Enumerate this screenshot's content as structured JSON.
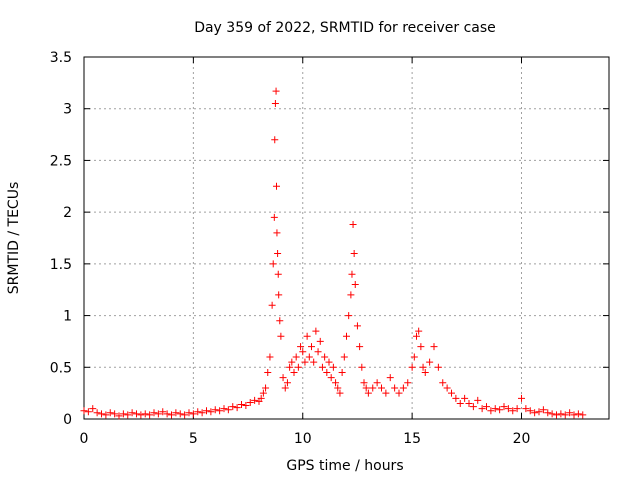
{
  "chart_data": {
    "type": "scatter",
    "title": "Day 359 of 2022, SRMTID for receiver case",
    "xlabel": "GPS time / hours",
    "ylabel": "SRMTID / TECUs",
    "xlim": [
      0,
      24
    ],
    "ylim": [
      0,
      3.5
    ],
    "xticks": [
      0,
      5,
      10,
      15,
      20
    ],
    "yticks": [
      0,
      0.5,
      1,
      1.5,
      2,
      2.5,
      3,
      3.5
    ],
    "xtick_labels": [
      "0",
      "5",
      "10",
      "15",
      "20"
    ],
    "ytick_labels": [
      "0",
      "0.5",
      "1",
      "1.5",
      "2",
      "2.5",
      "3",
      "3.5"
    ],
    "grid": true,
    "marker": "+",
    "color": "#ff0000",
    "series": [
      {
        "name": "SRMTID",
        "x": [
          0.0,
          0.2,
          0.4,
          0.6,
          0.8,
          1.0,
          1.2,
          1.4,
          1.6,
          1.8,
          2.0,
          2.2,
          2.4,
          2.6,
          2.8,
          3.0,
          3.2,
          3.4,
          3.6,
          3.8,
          4.0,
          4.2,
          4.4,
          4.6,
          4.8,
          5.0,
          5.2,
          5.4,
          5.6,
          5.8,
          6.0,
          6.2,
          6.4,
          6.6,
          6.8,
          7.0,
          7.2,
          7.4,
          7.6,
          7.8,
          8.0,
          8.1,
          8.2,
          8.3,
          8.4,
          8.5,
          8.6,
          8.65,
          8.7,
          8.72,
          8.75,
          8.78,
          8.8,
          8.82,
          8.85,
          8.88,
          8.9,
          8.95,
          9.0,
          9.1,
          9.2,
          9.3,
          9.4,
          9.5,
          9.6,
          9.7,
          9.8,
          9.9,
          10.0,
          10.1,
          10.2,
          10.3,
          10.4,
          10.5,
          10.6,
          10.7,
          10.8,
          10.9,
          11.0,
          11.1,
          11.2,
          11.3,
          11.4,
          11.5,
          11.6,
          11.7,
          11.8,
          11.9,
          12.0,
          12.1,
          12.2,
          12.25,
          12.3,
          12.35,
          12.4,
          12.5,
          12.6,
          12.7,
          12.8,
          12.9,
          13.0,
          13.2,
          13.4,
          13.6,
          13.8,
          14.0,
          14.2,
          14.4,
          14.6,
          14.8,
          15.0,
          15.1,
          15.2,
          15.3,
          15.4,
          15.5,
          15.6,
          15.8,
          16.0,
          16.2,
          16.4,
          16.6,
          16.8,
          17.0,
          17.2,
          17.4,
          17.6,
          17.8,
          18.0,
          18.2,
          18.4,
          18.6,
          18.8,
          19.0,
          19.2,
          19.4,
          19.6,
          19.8,
          20.0,
          20.2,
          20.4,
          20.6,
          20.8,
          21.0,
          21.2,
          21.4,
          21.6,
          21.8,
          22.0,
          22.2,
          22.4,
          22.6,
          22.8
        ],
        "y": [
          0.08,
          0.07,
          0.1,
          0.06,
          0.05,
          0.04,
          0.06,
          0.05,
          0.03,
          0.05,
          0.04,
          0.06,
          0.05,
          0.04,
          0.05,
          0.04,
          0.06,
          0.05,
          0.07,
          0.05,
          0.04,
          0.06,
          0.05,
          0.04,
          0.06,
          0.05,
          0.07,
          0.06,
          0.08,
          0.07,
          0.09,
          0.08,
          0.1,
          0.09,
          0.12,
          0.11,
          0.14,
          0.13,
          0.16,
          0.18,
          0.17,
          0.2,
          0.25,
          0.3,
          0.45,
          0.6,
          1.1,
          1.5,
          1.95,
          2.7,
          3.05,
          3.17,
          2.25,
          1.8,
          1.6,
          1.4,
          1.2,
          0.95,
          0.8,
          0.4,
          0.3,
          0.35,
          0.5,
          0.55,
          0.45,
          0.6,
          0.5,
          0.7,
          0.65,
          0.55,
          0.8,
          0.6,
          0.7,
          0.55,
          0.85,
          0.65,
          0.75,
          0.5,
          0.6,
          0.45,
          0.55,
          0.4,
          0.5,
          0.35,
          0.3,
          0.25,
          0.45,
          0.6,
          0.8,
          1.0,
          1.2,
          1.4,
          1.88,
          1.6,
          1.3,
          0.9,
          0.7,
          0.5,
          0.35,
          0.3,
          0.25,
          0.3,
          0.35,
          0.3,
          0.25,
          0.4,
          0.3,
          0.25,
          0.3,
          0.35,
          0.5,
          0.6,
          0.8,
          0.85,
          0.7,
          0.5,
          0.45,
          0.55,
          0.7,
          0.5,
          0.35,
          0.3,
          0.25,
          0.2,
          0.15,
          0.2,
          0.15,
          0.12,
          0.18,
          0.1,
          0.12,
          0.08,
          0.1,
          0.09,
          0.12,
          0.1,
          0.08,
          0.1,
          0.2,
          0.1,
          0.08,
          0.06,
          0.07,
          0.09,
          0.06,
          0.05,
          0.04,
          0.05,
          0.04,
          0.06,
          0.04,
          0.05,
          0.04
        ]
      }
    ]
  }
}
